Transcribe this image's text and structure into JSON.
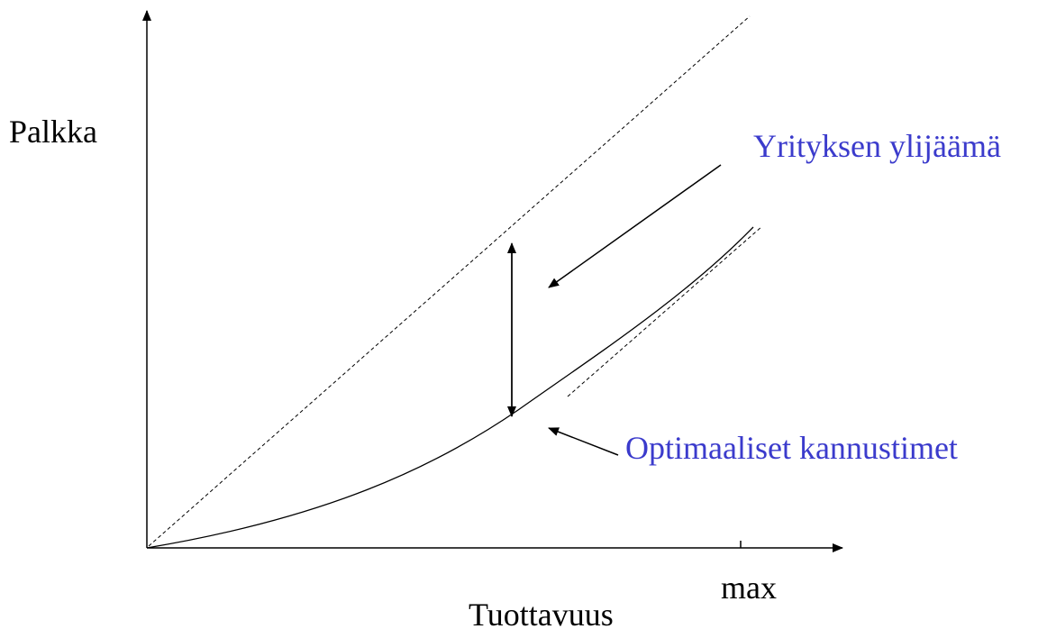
{
  "axes": {
    "y_label": "Palkka",
    "x_label": "Tuottavuus",
    "x_tick": "max"
  },
  "annotations": {
    "surplus": "Yrityksen ylijäämä",
    "optimal": "Optimaaliset kannustimet"
  }
}
